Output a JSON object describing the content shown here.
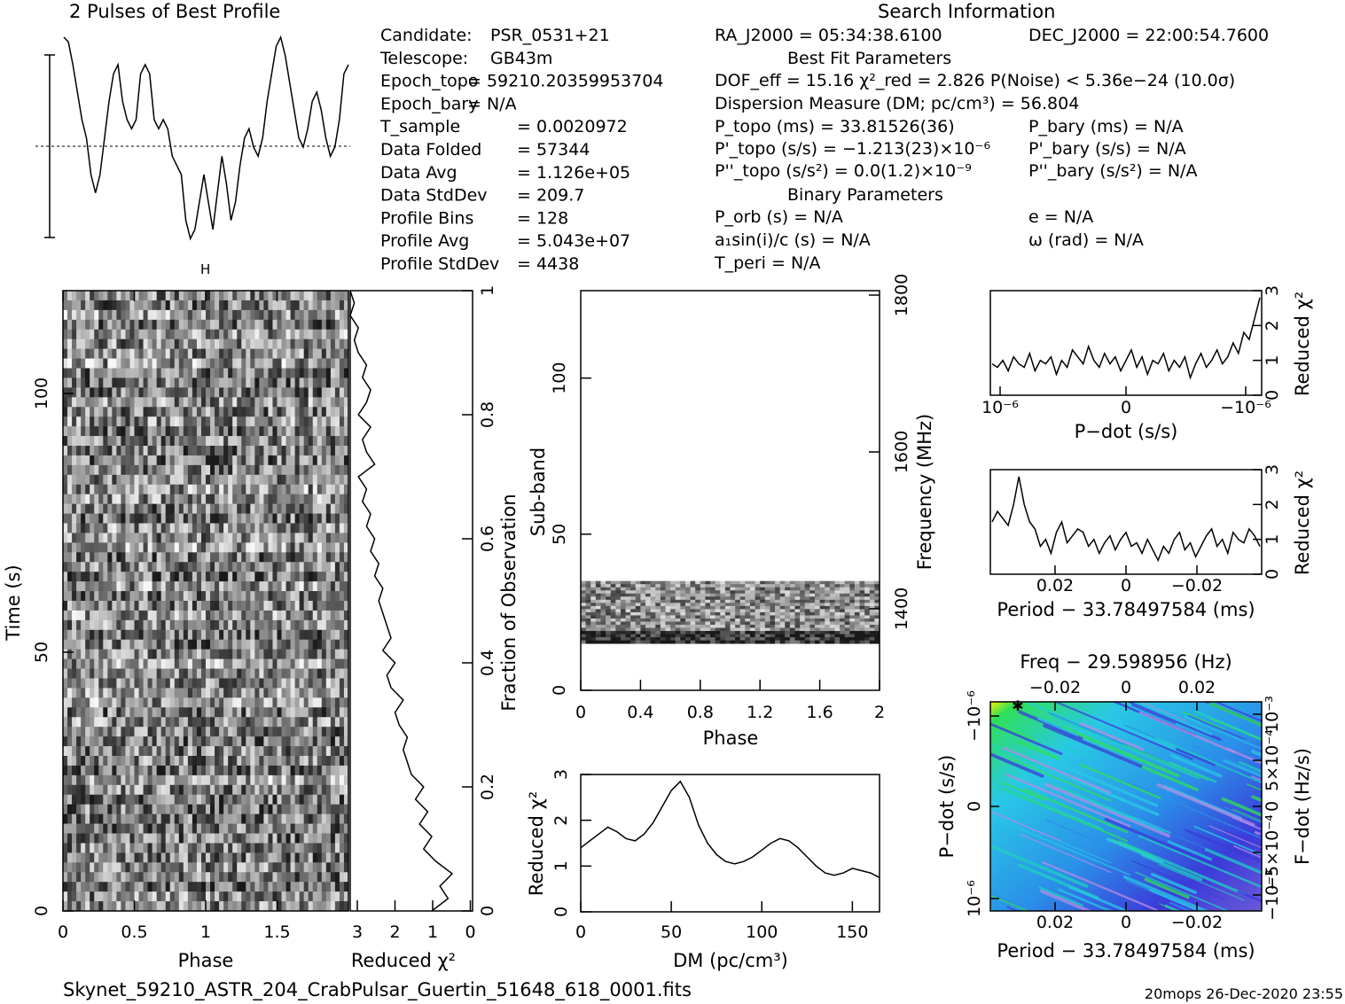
{
  "footer": {
    "filename": "Skynet_59210_ASTR_204_CrabPulsar_Guertin_51648_618_0001.fits",
    "stamp": "20mops 26-Dec-2020 23:55"
  },
  "headings": {
    "profile_title": "2 Pulses of Best Profile",
    "search_info": "Search Information",
    "best_fit": "Best Fit Parameters",
    "binary": "Binary Parameters"
  },
  "info_left": [
    {
      "label": "Candidate:",
      "value": "PSR_0531+21"
    },
    {
      "label": "Telescope:",
      "value": "GB43m"
    },
    {
      "label": "Epoch_topo",
      "value": "= 59210.20359953704"
    },
    {
      "label": "Epoch_bary",
      "value": "= N/A"
    },
    {
      "label": "T_sample",
      "value": "=   0.0020972"
    },
    {
      "label": "Data Folded",
      "value": "=   57344"
    },
    {
      "label": "Data Avg",
      "value": "=   1.126e+05"
    },
    {
      "label": "Data StdDev",
      "value": "=   209.7"
    },
    {
      "label": "Profile Bins",
      "value": "=   128"
    },
    {
      "label": "Profile Avg",
      "value": "=   5.043e+07"
    },
    {
      "label": "Profile StdDev",
      "value": "=   4438"
    }
  ],
  "info_mid": [
    "RA_J2000 = 05:34:38.6100",
    "DOF_eff = 15.16  χ²_red = 2.826  P(Noise) < 5.36e−24  (10.0σ)",
    "Dispersion Measure (DM; pc/cm³) = 56.804",
    "P_topo (ms) =  33.81526(36)",
    "P'_topo (s/s) = −1.213(23)×10⁻⁶",
    "P''_topo (s/s²) = 0.0(1.2)×10⁻⁹",
    "P_orb (s) = N/A",
    "a₁sin(i)/c (s) = N/A",
    "T_peri = N/A"
  ],
  "info_right": [
    "DEC_J2000 = 22:00:54.7600",
    "P_bary (ms) = N/A",
    "P'_bary (s/s) = N/A",
    "P''_bary (s/s²) = N/A",
    "e = N/A",
    "ω (rad) = N/A"
  ],
  "colors": {
    "line": "#000000",
    "heat_low": "#3b3bd9",
    "heat_mid": "#29c8e6",
    "heat_high": "#2fe05a",
    "heat_peak": "#f3f000"
  },
  "chart_data": [
    {
      "id": "profile",
      "type": "line",
      "title": "2 Pulses of Best Profile",
      "x_range": [
        0,
        2
      ],
      "y_range": [
        -1.2,
        1.2
      ],
      "values": [
        1.2,
        1.15,
        0.9,
        0.6,
        0.3,
        0.1,
        -0.3,
        -0.5,
        -0.3,
        0.1,
        0.5,
        0.8,
        0.9,
        0.5,
        0.3,
        0.2,
        0.3,
        0.8,
        0.9,
        0.8,
        0.3,
        0.2,
        0.3,
        0.2,
        -0.1,
        -0.2,
        -0.3,
        -0.8,
        -1.0,
        -0.9,
        -0.6,
        -0.3,
        -0.6,
        -0.9,
        -0.5,
        -0.1,
        -0.4,
        -0.8,
        -0.6,
        -0.2,
        0.1,
        0.2,
        0.0,
        -0.1,
        0.1,
        0.5,
        0.8,
        1.1,
        1.2,
        1.0,
        0.7,
        0.4,
        0.1,
        0.0,
        0.2,
        0.5,
        0.6,
        0.4,
        0.1,
        -0.1,
        0.0,
        0.3,
        0.8,
        0.9
      ]
    },
    {
      "id": "time_phase",
      "type": "heatmap",
      "xlabel": "Phase",
      "ylabel": "Time (s)",
      "x_ticks": [
        "0",
        "0.5",
        "1",
        "1.5"
      ],
      "y_ticks": [
        "0",
        "50",
        "100"
      ],
      "x_range": [
        0,
        2
      ],
      "y_range": [
        0,
        120
      ],
      "rows": 64,
      "cols": 64
    },
    {
      "id": "chi_time",
      "type": "line",
      "xlabel": "Reduced χ²",
      "ylabel": "Fraction of Observation",
      "x_ticks": [
        "3",
        "2",
        "1",
        "0"
      ],
      "y_ticks": [
        "0",
        "0.2",
        "0.4",
        "0.6",
        "0.8",
        "1"
      ],
      "x_range": [
        3,
        0
      ],
      "y_range": [
        0,
        1
      ],
      "y": [
        0,
        0.02,
        0.04,
        0.06,
        0.08,
        0.1,
        0.12,
        0.14,
        0.16,
        0.18,
        0.2,
        0.22,
        0.24,
        0.26,
        0.28,
        0.3,
        0.32,
        0.34,
        0.36,
        0.38,
        0.4,
        0.42,
        0.44,
        0.46,
        0.48,
        0.5,
        0.52,
        0.54,
        0.56,
        0.58,
        0.6,
        0.62,
        0.64,
        0.66,
        0.68,
        0.7,
        0.72,
        0.74,
        0.76,
        0.78,
        0.8,
        0.82,
        0.84,
        0.86,
        0.88,
        0.9,
        0.92,
        0.94,
        0.96,
        0.98,
        1
      ],
      "x": [
        1.0,
        0.6,
        0.8,
        0.5,
        0.9,
        1.2,
        1.0,
        1.3,
        1.1,
        1.4,
        1.2,
        1.5,
        1.6,
        1.7,
        1.6,
        1.8,
        1.9,
        1.7,
        2.0,
        2.1,
        1.9,
        2.2,
        2.0,
        2.1,
        2.2,
        2.3,
        2.2,
        2.4,
        2.3,
        2.5,
        2.4,
        2.6,
        2.5,
        2.7,
        2.6,
        2.8,
        2.4,
        2.6,
        2.7,
        2.5,
        2.8,
        2.6,
        2.5,
        2.7,
        2.6,
        2.8,
        2.9,
        2.8,
        3.0,
        2.9,
        3.0
      ]
    },
    {
      "id": "subband_phase",
      "type": "heatmap",
      "xlabel": "Phase",
      "ylabel": "Sub-band",
      "right_label": "Frequency (MHz)",
      "x_ticks": [
        "0",
        "0.4",
        "0.8",
        "1.2",
        "1.6",
        "2"
      ],
      "y_ticks": [
        "0",
        "50",
        "100"
      ],
      "freq_ticks": [
        "1400",
        "1600",
        "1800"
      ],
      "x_range": [
        0,
        2
      ],
      "y_range": [
        0,
        128
      ],
      "band_range": [
        15,
        35
      ]
    },
    {
      "id": "dm_chi",
      "type": "line",
      "xlabel": "DM (pc/cm³)",
      "ylabel": "Reduced χ²",
      "x_ticks": [
        "0",
        "50",
        "100",
        "150"
      ],
      "y_ticks": [
        "0",
        "1",
        "2",
        "3"
      ],
      "x_range": [
        0,
        165
      ],
      "y_range": [
        0,
        3
      ],
      "x": [
        0,
        5,
        10,
        15,
        20,
        25,
        30,
        35,
        40,
        45,
        50,
        55,
        60,
        65,
        70,
        75,
        80,
        85,
        90,
        95,
        100,
        105,
        110,
        115,
        120,
        125,
        130,
        135,
        140,
        145,
        150,
        155,
        160,
        165
      ],
      "values": [
        1.4,
        1.55,
        1.7,
        1.85,
        1.75,
        1.6,
        1.55,
        1.7,
        1.95,
        2.3,
        2.65,
        2.85,
        2.5,
        1.9,
        1.5,
        1.25,
        1.1,
        1.05,
        1.1,
        1.2,
        1.35,
        1.5,
        1.6,
        1.55,
        1.4,
        1.2,
        1.0,
        0.85,
        0.8,
        0.85,
        0.95,
        0.9,
        0.85,
        0.75
      ]
    },
    {
      "id": "pdot_chi",
      "type": "line",
      "xlabel": "P−dot (s/s)",
      "ylabel": "Reduced χ²",
      "x_ticks": [
        "10⁻⁶",
        "0",
        "−10⁻⁶"
      ],
      "y_ticks": [
        "0",
        "1",
        "2",
        "3"
      ],
      "y_range": [
        0,
        3
      ],
      "values": [
        0.9,
        0.8,
        1.0,
        0.7,
        1.1,
        0.9,
        0.8,
        1.2,
        0.7,
        1.0,
        0.9,
        1.1,
        0.6,
        1.0,
        0.8,
        1.3,
        1.1,
        0.9,
        1.4,
        1.0,
        0.8,
        1.2,
        0.9,
        1.1,
        0.7,
        1.0,
        1.3,
        0.8,
        1.1,
        0.6,
        1.0,
        0.9,
        1.2,
        0.7,
        1.0,
        0.8,
        1.1,
        0.5,
        0.9,
        1.2,
        0.8,
        1.0,
        1.3,
        0.9,
        1.1,
        1.5,
        1.2,
        1.8,
        1.6,
        2.2,
        2.8
      ]
    },
    {
      "id": "period_chi",
      "type": "line",
      "xlabel": "Period − 33.78497584 (ms)",
      "ylabel": "Reduced χ²",
      "x_ticks": [
        "0.02",
        "0",
        "−0.02"
      ],
      "y_ticks": [
        "0",
        "1",
        "2",
        "3"
      ],
      "y_range": [
        0,
        3
      ],
      "values": [
        1.5,
        1.8,
        1.6,
        1.4,
        2.0,
        2.8,
        2.0,
        1.5,
        1.3,
        0.8,
        1.0,
        0.6,
        1.2,
        1.5,
        0.9,
        1.1,
        1.3,
        1.2,
        0.8,
        1.0,
        0.6,
        0.9,
        1.1,
        0.7,
        1.0,
        1.2,
        0.8,
        0.9,
        0.6,
        1.0,
        0.7,
        0.4,
        0.8,
        0.6,
        1.0,
        1.2,
        0.7,
        0.9,
        0.5,
        0.8,
        1.1,
        1.3,
        0.8,
        1.0,
        0.6,
        1.2,
        1.0,
        0.9,
        1.3,
        1.1,
        0.8
      ]
    },
    {
      "id": "ppdot_plane",
      "type": "heatmap",
      "title": "Freq − 29.598956 (Hz)",
      "xlabel": "Period − 33.78497584 (ms)",
      "ylabel": "P−dot (s/s)",
      "right_label": "F−dot (Hz/s)",
      "x_ticks": [
        "0.02",
        "0",
        "−0.02"
      ],
      "top_ticks": [
        "−0.02",
        "0",
        "0.02"
      ],
      "y_ticks": [
        "10⁻⁶",
        "0",
        "−10⁻⁶"
      ],
      "right_ticks": [
        "−10⁻³",
        "−5×10⁻⁴",
        "0",
        "5×10⁻⁴",
        "10⁻³"
      ]
    }
  ]
}
